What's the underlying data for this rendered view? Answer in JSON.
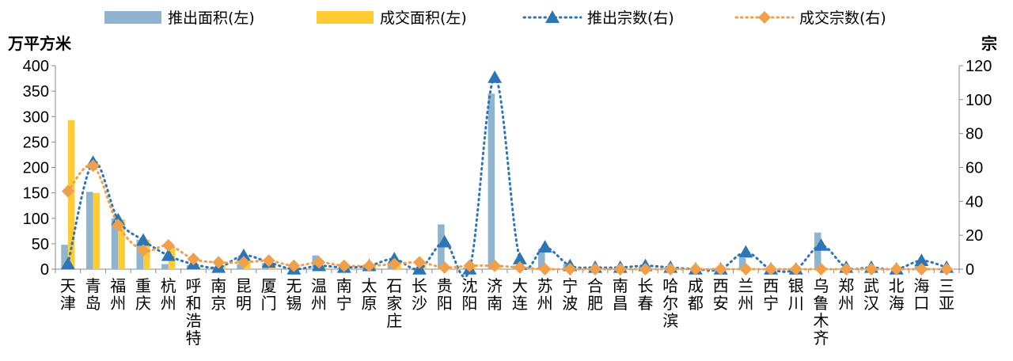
{
  "chart_data": {
    "type": "bar",
    "y_left_unit": "万平方米",
    "y_right_unit": "宗",
    "ylim_left": [
      0,
      400
    ],
    "ylim_right": [
      0,
      120
    ],
    "yticks_left": [
      "0",
      "50",
      "100",
      "150",
      "200",
      "250",
      "300",
      "350",
      "400"
    ],
    "yticks_right": [
      "0",
      "20",
      "40",
      "60",
      "80",
      "100",
      "120"
    ],
    "grid": false,
    "legend_position": "top",
    "categories": [
      "天津",
      "青岛",
      "福州",
      "重庆",
      "杭州",
      "呼和浩特",
      "南京",
      "昆明",
      "厦门",
      "无锡",
      "温州",
      "南宁",
      "太原",
      "石家庄",
      "长沙",
      "贵阳",
      "沈阳",
      "济南",
      "大连",
      "苏州",
      "宁波",
      "合肥",
      "南昌",
      "长春",
      "哈尔滨",
      "成都",
      "西安",
      "兰州",
      "西宁",
      "银川",
      "乌鲁木齐",
      "郑州",
      "武汉",
      "北海",
      "海口",
      "三亚"
    ],
    "series": [
      {
        "name": "推出面积(左)",
        "axis": "left",
        "kind": "bar",
        "color": "#8EB4CF",
        "values": [
          48,
          152,
          100,
          58,
          10,
          8,
          5,
          10,
          12,
          3,
          27,
          3,
          5,
          10,
          3,
          88,
          3,
          345,
          7,
          40,
          10,
          3,
          2,
          5,
          3,
          2,
          2,
          22,
          0,
          0,
          72,
          1,
          2,
          1,
          7,
          0
        ]
      },
      {
        "name": "成交面积(左)",
        "axis": "left",
        "kind": "bar",
        "color": "#FFCC33",
        "values": [
          293,
          150,
          98,
          58,
          45,
          5,
          8,
          12,
          10,
          3,
          5,
          5,
          8,
          8,
          8,
          5,
          3,
          8,
          3,
          3,
          2,
          2,
          2,
          2,
          2,
          2,
          2,
          2,
          0,
          0,
          3,
          1,
          2,
          1,
          2,
          1
        ]
      },
      {
        "name": "推出宗数(右)",
        "axis": "right",
        "kind": "line",
        "style": "dotted",
        "marker": "triangle",
        "color": "#2E75B6",
        "values": [
          3,
          63,
          29,
          17,
          8,
          3,
          1,
          8,
          4,
          0,
          2,
          1,
          2,
          6,
          0,
          16,
          0,
          113,
          6,
          13,
          2,
          1,
          1,
          2,
          1,
          0,
          0,
          10,
          0,
          0,
          14,
          1,
          1,
          0,
          5,
          1
        ]
      },
      {
        "name": "成交宗数(右)",
        "axis": "right",
        "kind": "line",
        "style": "dotted",
        "marker": "diamond",
        "color": "#F0A04B",
        "values": [
          46,
          61,
          26,
          11,
          14,
          6,
          4,
          4,
          5,
          2,
          4,
          2,
          2,
          3,
          4,
          1,
          2,
          2,
          1,
          0,
          0,
          0,
          0,
          0,
          0,
          0,
          0,
          0,
          0,
          0,
          0,
          0,
          0,
          0,
          0,
          0
        ]
      }
    ]
  }
}
